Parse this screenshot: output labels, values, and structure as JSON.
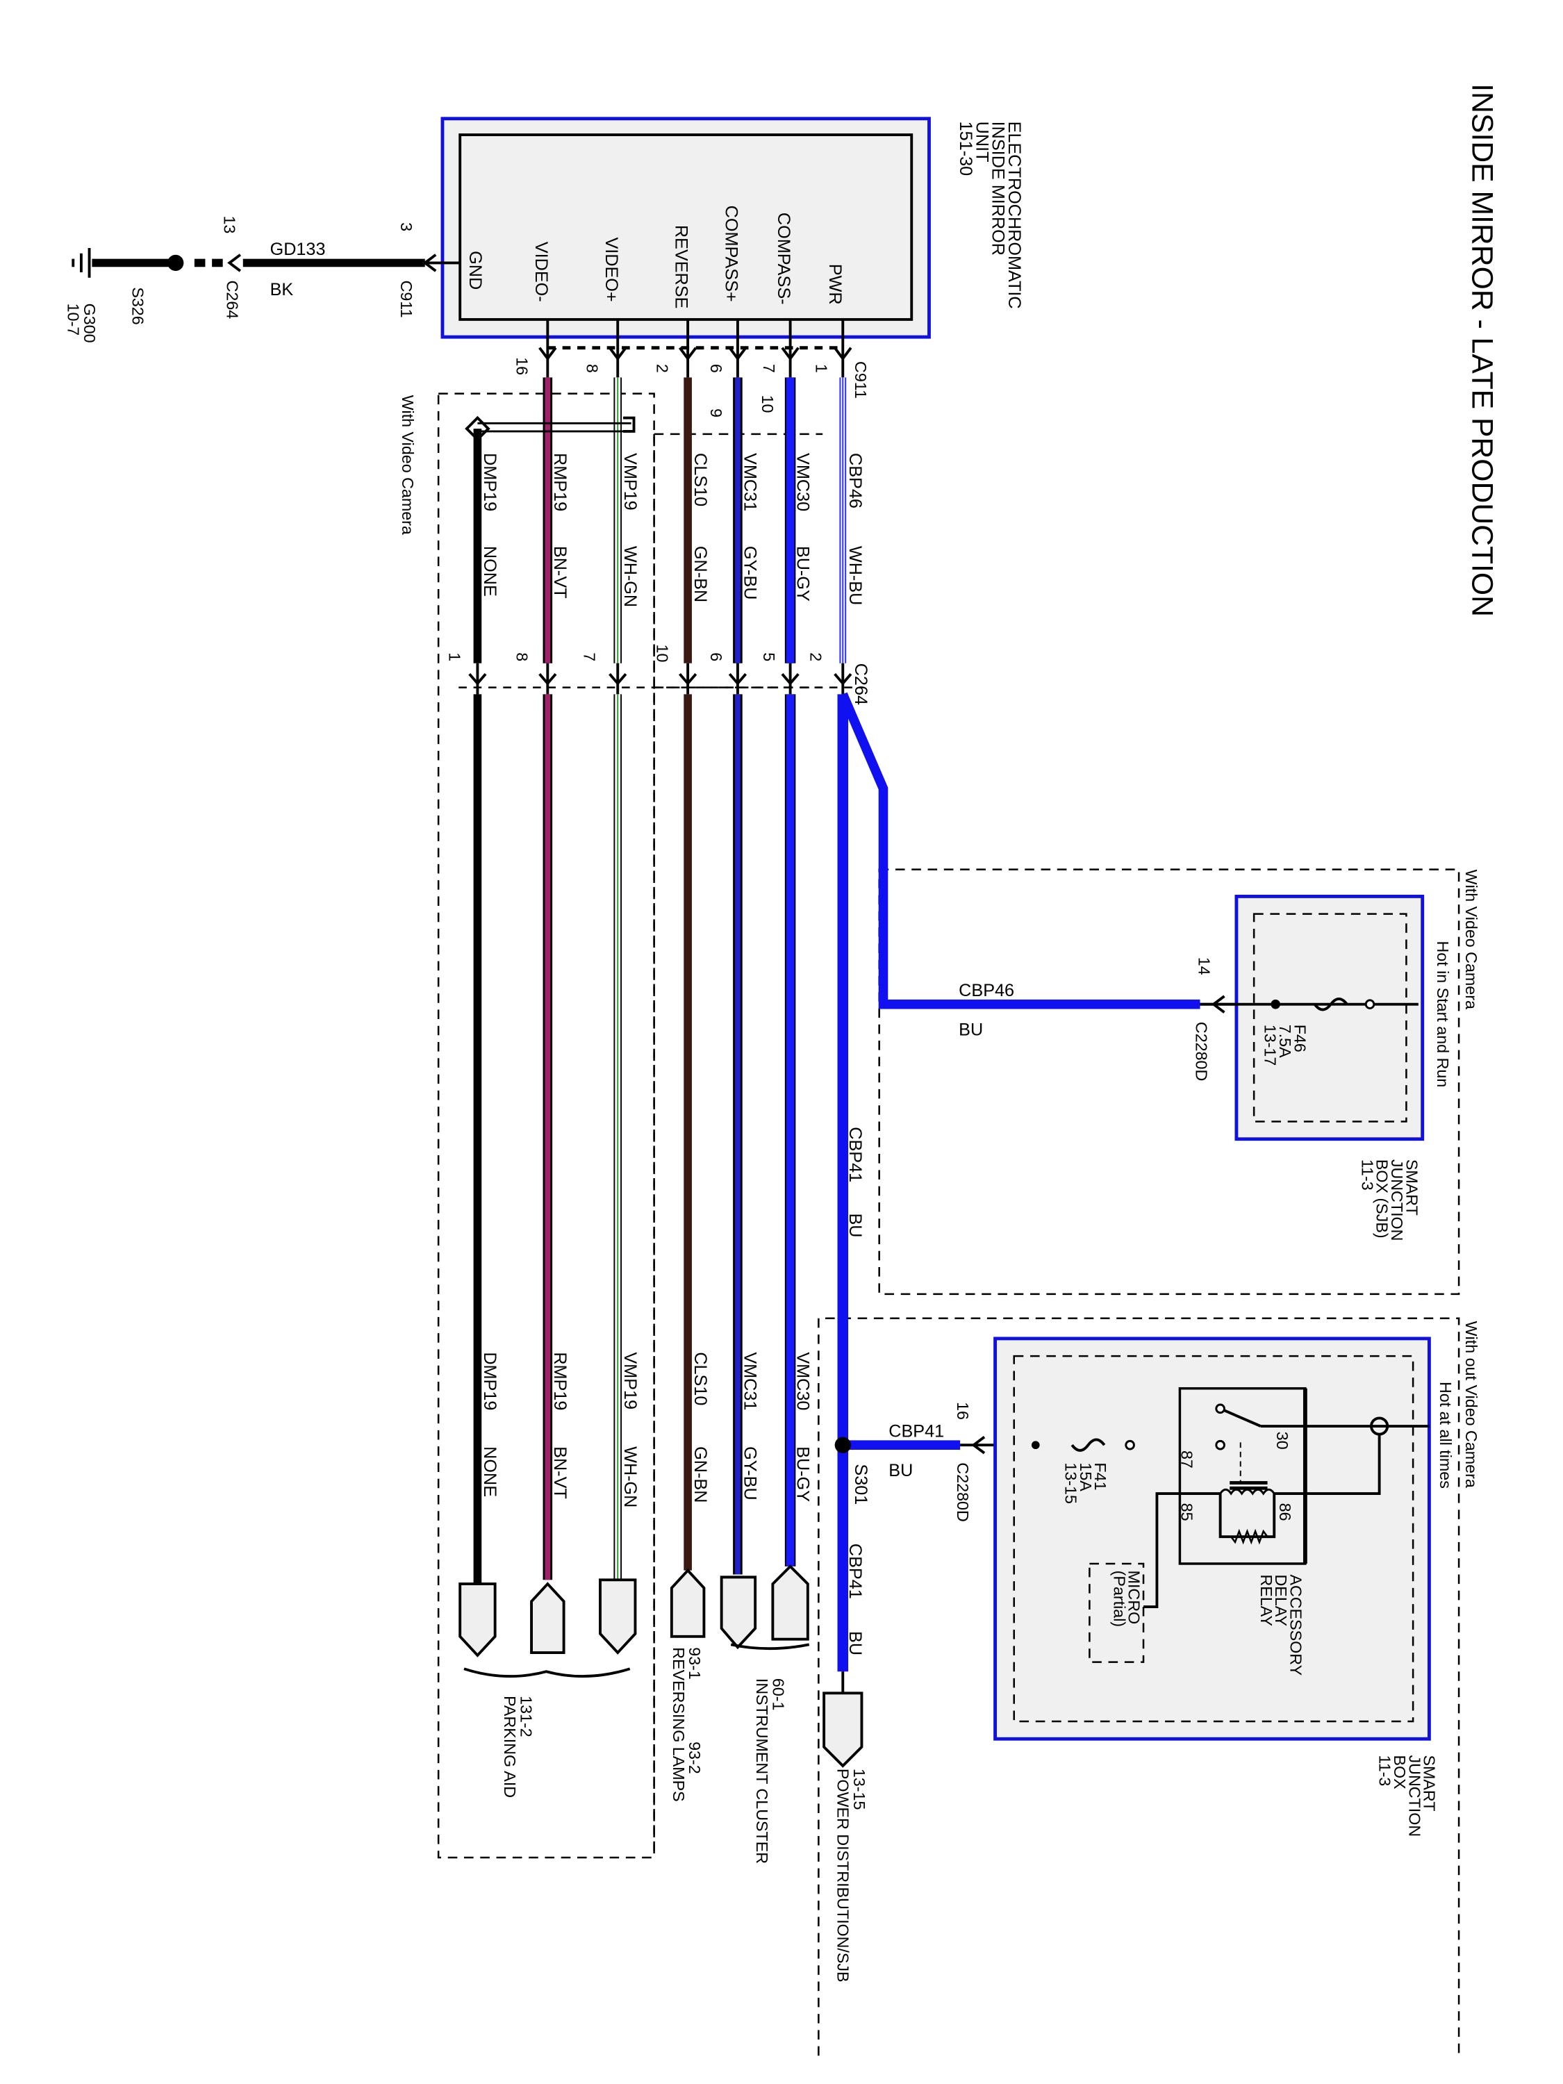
{
  "title": "INSIDE MIRROR - LATE PRODUCTION",
  "module": {
    "name_lines": [
      "ELECTROCHROMATIC",
      "INSIDE MIRROR",
      "UNIT",
      "151-30"
    ],
    "pins": [
      "PWR",
      "COMPASS-",
      "COMPASS+",
      "REVERSE",
      "VIDEO+",
      "VIDEO-",
      "GND"
    ]
  },
  "connectors": {
    "c911": "C911",
    "c264": "C264",
    "c2280d": "C2280D",
    "c911_pins": [
      "1",
      "7",
      "6",
      "2",
      "8",
      "16",
      "3"
    ],
    "c264_left_pins": [
      "10",
      "9"
    ],
    "c264_pins": [
      "2",
      "5",
      "6",
      "10",
      "7",
      "8",
      "1",
      "13"
    ],
    "c2280d_pin_a": "14",
    "c2280d_pin_b": "16"
  },
  "wires": [
    {
      "circuit": "CBP46",
      "color": "WH-BU",
      "hex": "#2b2bff"
    },
    {
      "circuit": "VMC30",
      "color": "BU-GY",
      "hex": "#1a1aff"
    },
    {
      "circuit": "VMC31",
      "color": "GY-BU",
      "hex": "#2222c8"
    },
    {
      "circuit": "CLS10",
      "color": "GN-BN",
      "hex": "#3a1a12"
    },
    {
      "circuit": "VMP19",
      "color": "WH-GN",
      "hex": "#ffffff"
    },
    {
      "circuit": "RMP19",
      "color": "BN-VT",
      "hex": "#a0206a"
    },
    {
      "circuit": "DMP19",
      "color": "NONE",
      "hex": "#000000"
    }
  ],
  "power": {
    "cbp46": "CBP46",
    "cbp46_color": "BU",
    "cbp41": "CBP41",
    "cbp41_color": "BU",
    "splice": "S301",
    "blue": "#1010f0"
  },
  "ground": {
    "circuit": "GD133",
    "color": "BK",
    "splice": "S326",
    "ground_lines": [
      "G300",
      "10-7"
    ]
  },
  "sjb_camera": {
    "condition": "With Video Camera",
    "hot": "Hot in Start and Run",
    "fuse_lines": [
      "F46",
      "7.5A",
      "13-17"
    ],
    "name_lines": [
      "SMART",
      "JUNCTION",
      "BOX (SJB)",
      "11-3"
    ]
  },
  "sjb_no_camera": {
    "condition": "With out Video Camera",
    "hot": "Hot at all times",
    "fuse_lines": [
      "F41",
      "15A",
      "13-15"
    ],
    "relay_lines": [
      "ACCESSORY",
      "DELAY",
      "RELAY"
    ],
    "relay_pins": [
      "30",
      "87",
      "85",
      "86"
    ],
    "micro_lines": [
      "MICRO",
      "(Partial)"
    ],
    "name_lines": [
      "SMART",
      "JUNCTION",
      "BOX",
      "11-3"
    ]
  },
  "camera_option": "With Video Camera",
  "destinations": {
    "parking": [
      "131-2",
      "PARKING AID"
    ],
    "reversing": [
      "93-1",
      "REVERSING LAMPS",
      "93-2"
    ],
    "cluster": [
      "60-1",
      "INSTRUMENT CLUSTER"
    ],
    "power": [
      "13-15",
      "POWER DISTRIBUTION/SJB"
    ]
  }
}
